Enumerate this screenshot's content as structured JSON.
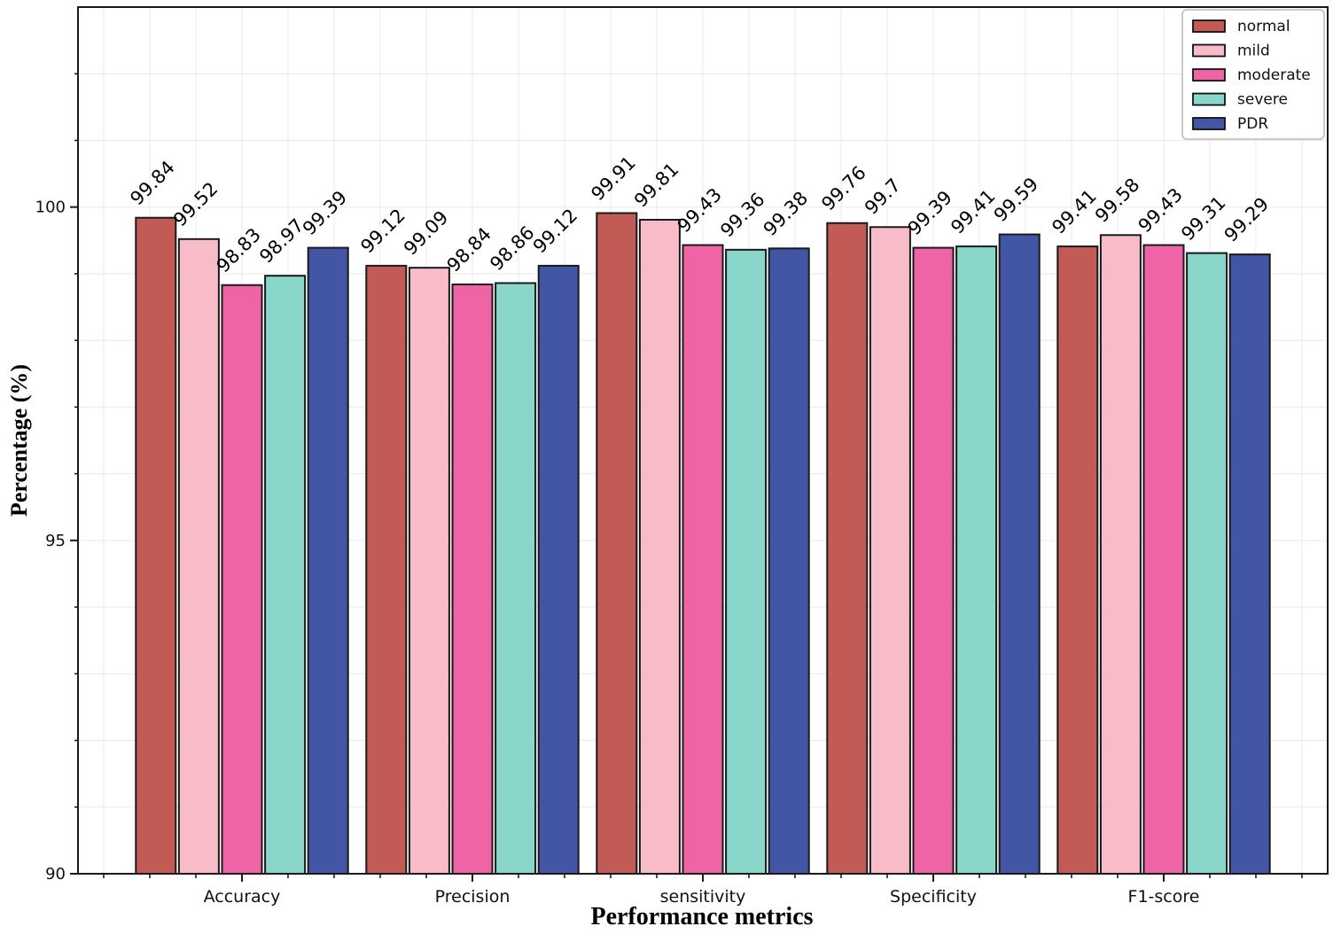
{
  "chart_data": {
    "type": "bar",
    "title": "",
    "xlabel": "Performance metrics",
    "ylabel": "Percentage (%)",
    "categories": [
      "Accuracy",
      "Precision",
      "sensitivity",
      "Specificity",
      "F1-score"
    ],
    "series": [
      {
        "name": "normal",
        "color": "#C25B55",
        "values": [
          99.84,
          99.12,
          99.91,
          99.76,
          99.41
        ]
      },
      {
        "name": "mild",
        "color": "#F8BCC9",
        "values": [
          99.52,
          99.09,
          99.81,
          99.7,
          99.58
        ]
      },
      {
        "name": "moderate",
        "color": "#EE64A4",
        "values": [
          98.83,
          98.84,
          99.43,
          99.39,
          99.43
        ]
      },
      {
        "name": "severe",
        "color": "#89D6CA",
        "values": [
          98.97,
          98.86,
          99.36,
          99.41,
          99.31
        ]
      },
      {
        "name": "PDR",
        "color": "#4355A5",
        "values": [
          99.39,
          99.12,
          99.38,
          99.59,
          99.29
        ]
      }
    ],
    "ylim": [
      90,
      103
    ],
    "yticks": [
      90,
      95,
      100
    ],
    "grid": true,
    "legend_position": "upper right",
    "bar_edge_color": "#1a1a1a",
    "grid_color": "#e9e9e9",
    "spine_color": "#1a1a1a",
    "text_color": "#111111"
  }
}
